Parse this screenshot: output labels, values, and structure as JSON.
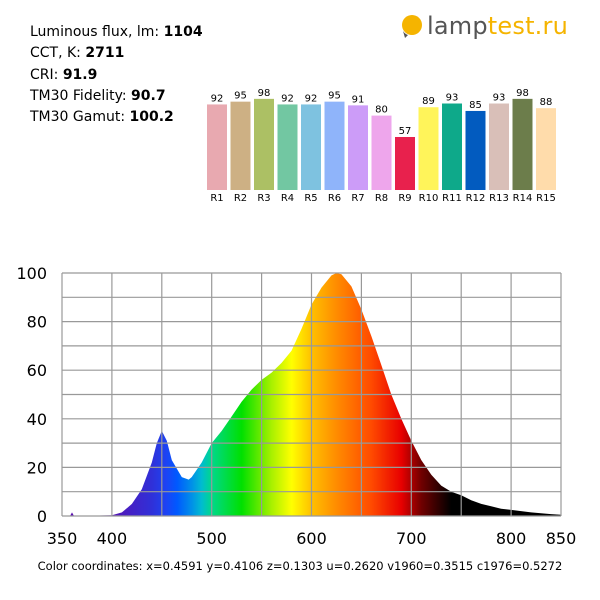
{
  "stats": [
    {
      "label": "Luminous flux, lm: ",
      "value": "1104"
    },
    {
      "label": "CCT, K: ",
      "value": "2711"
    },
    {
      "label": "CRI: ",
      "value": "91.9"
    },
    {
      "label": "TM30 Fidelity: ",
      "value": "90.7"
    },
    {
      "label": "TM30 Gamut: ",
      "value": "100.2"
    }
  ],
  "logo": {
    "part1": "lamp",
    "part2": "test.ru",
    "colors": {
      "bulb": "#f5b400",
      "text": "#555555",
      "accent": "#f5b400"
    }
  },
  "footer": "Color coordinates: x=0.4591 y=0.4106 z=0.1303 u=0.2620 v1960=0.3515 c1976=0.5272",
  "chart_data": [
    {
      "type": "bar",
      "categories": [
        "R1",
        "R2",
        "R3",
        "R4",
        "R5",
        "R6",
        "R7",
        "R8",
        "R9",
        "R10",
        "R11",
        "R12",
        "R13",
        "R14",
        "R15"
      ],
      "values": [
        92,
        95,
        98,
        92,
        92,
        95,
        91,
        80,
        57,
        89,
        93,
        85,
        93,
        98,
        88
      ],
      "colors": [
        "#e8a9b0",
        "#cdb084",
        "#acc064",
        "#72c7a2",
        "#7ec2e0",
        "#8fb4fa",
        "#cc9cf8",
        "#eea6ec",
        "#e8214d",
        "#fff45a",
        "#0ea98a",
        "#025bbf",
        "#d9bfb8",
        "#6c7d4b",
        "#ffdcab"
      ],
      "ylim": [
        0,
        100
      ]
    },
    {
      "type": "area",
      "xlim": [
        350,
        850
      ],
      "ylim": [
        0,
        100
      ],
      "x_ticks": [
        350,
        400,
        500,
        600,
        700,
        800,
        850
      ],
      "y_ticks": [
        0,
        20,
        40,
        60,
        80,
        100
      ],
      "grid": true,
      "x": [
        350,
        358,
        360,
        362,
        400,
        410,
        420,
        430,
        440,
        445,
        450,
        455,
        460,
        470,
        477,
        480,
        490,
        500,
        510,
        520,
        530,
        540,
        550,
        560,
        570,
        580,
        590,
        600,
        610,
        620,
        625,
        630,
        640,
        650,
        660,
        670,
        680,
        690,
        700,
        710,
        720,
        730,
        740,
        750,
        760,
        770,
        780,
        790,
        800,
        820,
        840,
        850
      ],
      "y": [
        0,
        0,
        1.5,
        0,
        0.3,
        1.5,
        5,
        11,
        22,
        30,
        35,
        31,
        23,
        16,
        15,
        16,
        22,
        30,
        35,
        41,
        47,
        52,
        56,
        59,
        63,
        68,
        77,
        87,
        94,
        99,
        100,
        99.5,
        94.5,
        85,
        74,
        62,
        50,
        40,
        31,
        23,
        17,
        12.5,
        10,
        8.5,
        6.5,
        5,
        4,
        3,
        2.5,
        1.5,
        0.8,
        0.5
      ]
    }
  ]
}
